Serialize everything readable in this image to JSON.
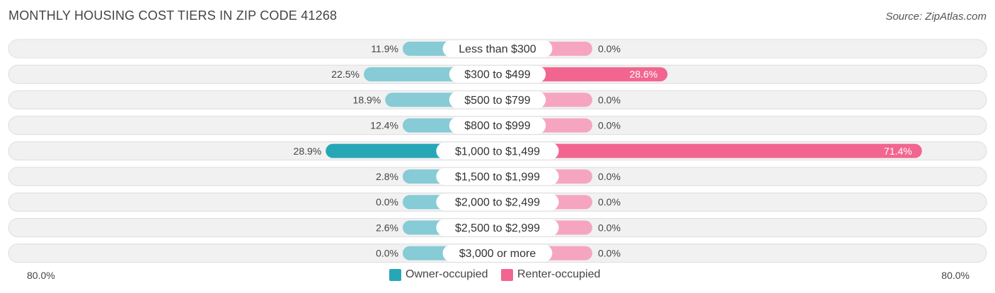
{
  "header": {
    "title": "MONTHLY HOUSING COST TIERS IN ZIP CODE 41268",
    "source": "Source: ZipAtlas.com"
  },
  "colors": {
    "owner_strong": "#27a7b5",
    "owner_light": "#86cbd5",
    "renter_strong": "#f26591",
    "renter_light": "#f6a5c0",
    "track": "#f1f1f1",
    "track_border": "#dedede"
  },
  "chart_data": {
    "type": "bar",
    "orientation": "diverging-horizontal",
    "categories": [
      "Less than $300",
      "$300 to $499",
      "$500 to $799",
      "$800 to $999",
      "$1,000 to $1,499",
      "$1,500 to $1,999",
      "$2,000 to $2,499",
      "$2,500 to $2,999",
      "$3,000 or more"
    ],
    "series": [
      {
        "name": "Owner-occupied",
        "values": [
          11.9,
          22.5,
          18.9,
          12.4,
          28.9,
          2.8,
          0.0,
          2.6,
          0.0
        ]
      },
      {
        "name": "Renter-occupied",
        "values": [
          0.0,
          28.6,
          0.0,
          0.0,
          71.4,
          0.0,
          0.0,
          0.0,
          0.0
        ]
      }
    ],
    "xlim": [
      -80,
      80
    ],
    "axis_min_label": "80.0%",
    "axis_max_label": "80.0%",
    "legend_position": "bottom-center"
  }
}
